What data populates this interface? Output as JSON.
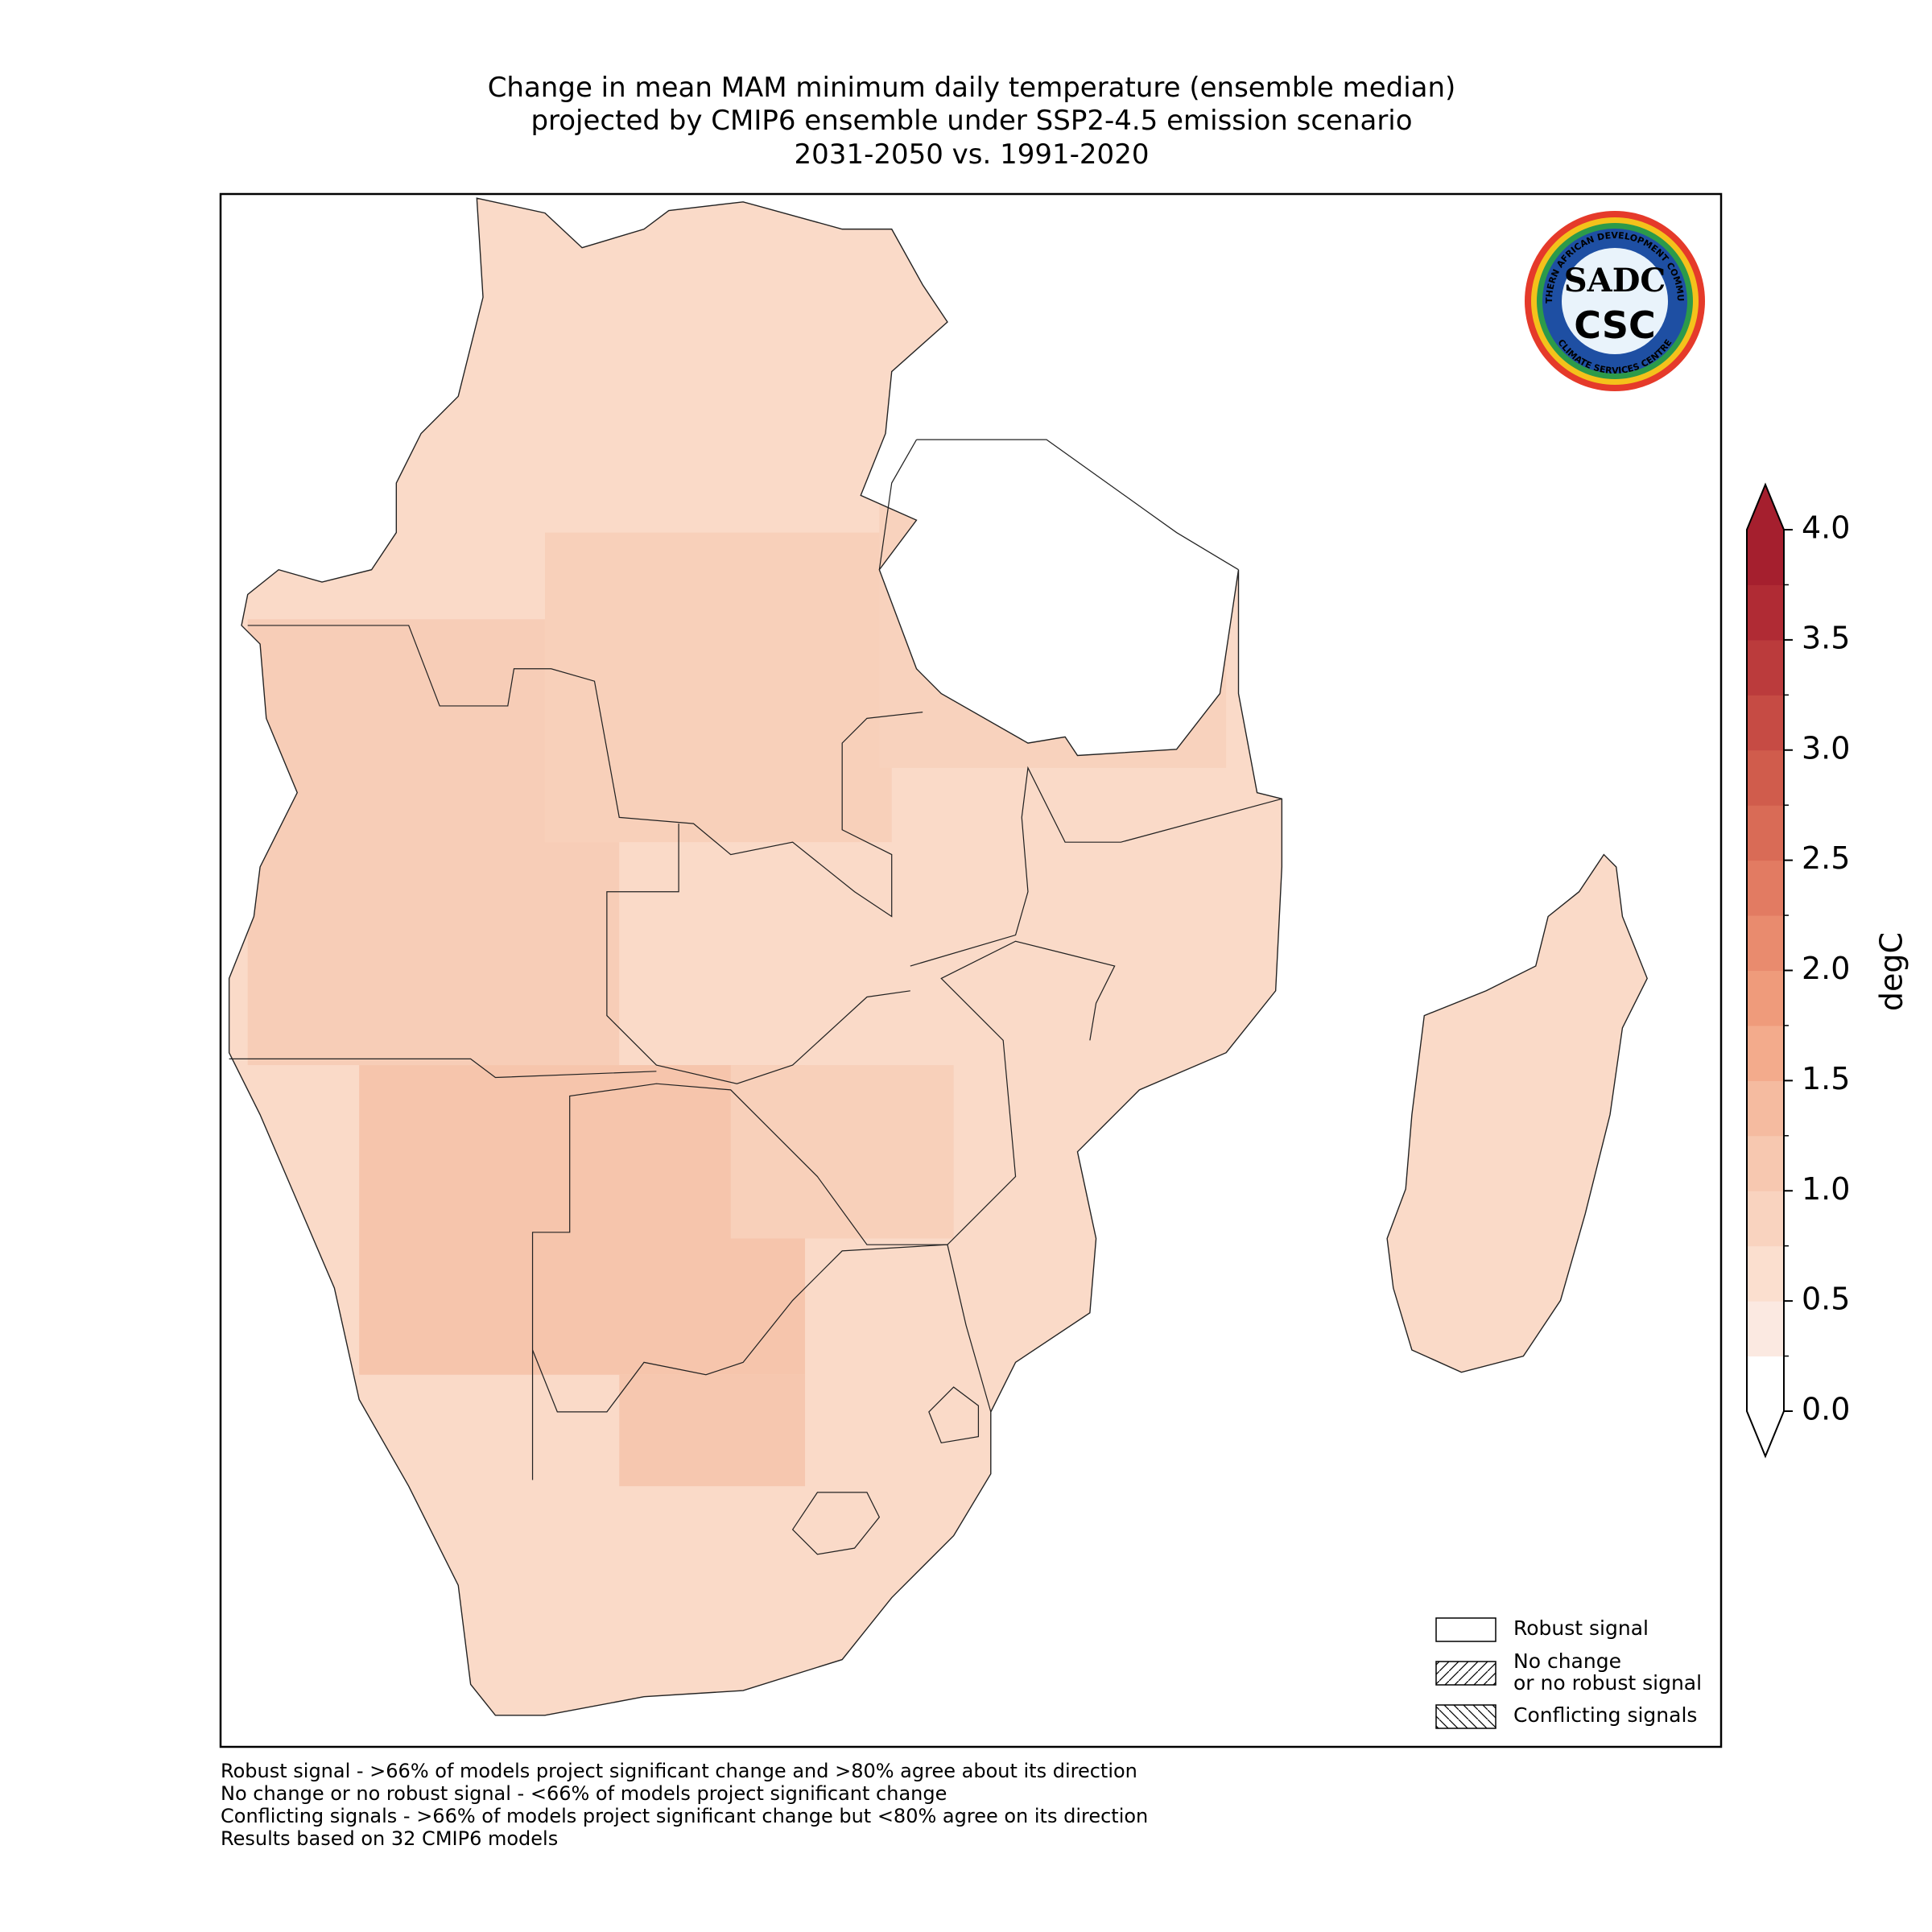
{
  "title": [
    "Change in mean MAM minimum daily temperature (ensemble median)",
    "projected by CMIP6 ensemble under SSP2-4.5 emission scenario",
    "2031-2050 vs. 1991-2020"
  ],
  "logo": {
    "top": "SADC",
    "bottom": "CSC",
    "ring_top": "SOUTHERN AFRICAN DEVELOPMENT COMMUNITY",
    "ring_bottom": "CLIMATE SERVICES CENTRE"
  },
  "colorbar": {
    "label": "degC",
    "lim": [
      0,
      4
    ],
    "ticks": [
      {
        "value": 0,
        "label": "0.0"
      },
      {
        "value": 0.5,
        "label": "0.5"
      },
      {
        "value": 1,
        "label": "1.0"
      },
      {
        "value": 1.5,
        "label": "1.5"
      },
      {
        "value": 2,
        "label": "2.0"
      },
      {
        "value": 2.5,
        "label": "2.5"
      },
      {
        "value": 3,
        "label": "3.0"
      },
      {
        "value": 3.5,
        "label": "3.5"
      },
      {
        "value": 4,
        "label": "4.0"
      }
    ],
    "minor_ticks": [
      0.25,
      0.75,
      1.25,
      1.75,
      2.25,
      2.75,
      3.25,
      3.75
    ],
    "colors": [
      "#ffffff",
      "#fbe9e1",
      "#fbdfcf",
      "#f9d3bf",
      "#f7c8b0",
      "#f5bba0",
      "#f3ab8c",
      "#ef9b7b",
      "#e98b6e",
      "#e27b62",
      "#d96b56",
      "#d05c4c",
      "#c64b44",
      "#bb3b3c",
      "#b02b34",
      "#a51f2e"
    ],
    "under_color": "#ffffff",
    "over_color": "#a51f2e"
  },
  "legend": [
    {
      "label": "Robust signal",
      "hatch": "none"
    },
    {
      "label": "No change\nor no robust signal",
      "hatch": "forward"
    },
    {
      "label": "Conflicting signals",
      "hatch": "back"
    }
  ],
  "footnotes": [
    "Robust signal - >66% of models project significant change and >80% agree about its direction",
    "No change or no robust signal - <66% of models project significant change",
    "Conflicting signals - >66% of models project significant change but <80% agree on its direction",
    "Results based on 32 CMIP6 models"
  ]
}
